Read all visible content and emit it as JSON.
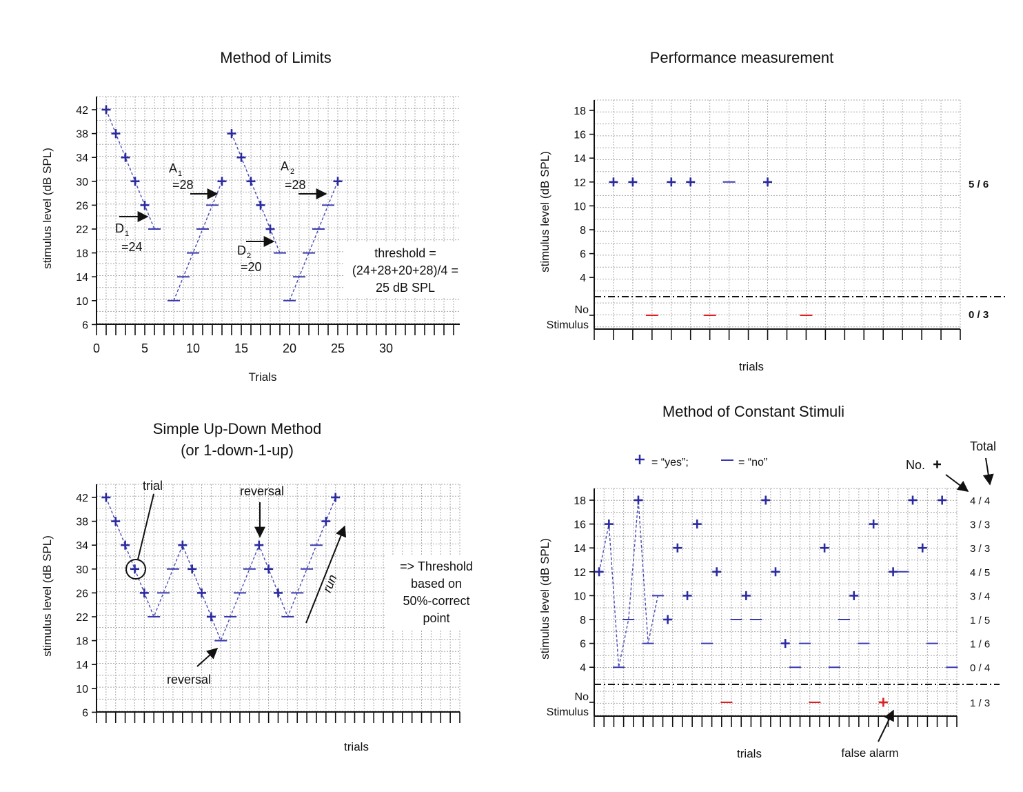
{
  "colors": {
    "yes": "#2b2ba0",
    "no": "#3a3ab0",
    "stimulus_absent": "#e02020",
    "path": "#4b4bb5",
    "text": "#111111"
  },
  "chart_data": [
    {
      "id": "limits",
      "type": "scatter",
      "title": "Method of Limits",
      "xlabel": "Trials",
      "ylabel": "stimulus level (dB SPL)",
      "xlim": [
        0,
        37
      ],
      "ylim": [
        6,
        42
      ],
      "xticks": [
        "0",
        "5",
        "10",
        "15",
        "20",
        "25",
        "30"
      ],
      "yticks": [
        "42",
        "38",
        "34",
        "30",
        "26",
        "22",
        "18",
        "14",
        "10",
        "6"
      ],
      "runs": [
        {
          "x": [
            1,
            2,
            3,
            4,
            5,
            6
          ],
          "y": [
            42,
            38,
            34,
            30,
            26,
            22
          ],
          "resp": [
            "+",
            "+",
            "+",
            "+",
            "+",
            "-"
          ]
        },
        {
          "x": [
            8,
            9,
            10,
            11,
            12,
            13
          ],
          "y": [
            10,
            14,
            18,
            22,
            26,
            30
          ],
          "resp": [
            "-",
            "-",
            "-",
            "-",
            "-",
            "+"
          ]
        },
        {
          "x": [
            14,
            15,
            16,
            17,
            18,
            19
          ],
          "y": [
            38,
            34,
            30,
            26,
            22,
            18
          ],
          "resp": [
            "+",
            "+",
            "+",
            "+",
            "+",
            "-"
          ]
        },
        {
          "x": [
            20,
            21,
            22,
            23,
            24,
            25
          ],
          "y": [
            10,
            14,
            18,
            22,
            26,
            30
          ],
          "resp": [
            "-",
            "-",
            "-",
            "-",
            "-",
            "+"
          ]
        }
      ],
      "annotations": {
        "a1": "A",
        "a1_sub": "1",
        "a1_val": "=28",
        "a2": "A",
        "a2_sub": "2",
        "a2_val": "=28",
        "d1": "D",
        "d1_sub": "1",
        "d1_val": "=24",
        "d2": "D",
        "d2_sub": "2",
        "d2_val": "=20",
        "threshold": [
          "threshold =",
          "(24+28+20+28)/4 =",
          "25 dB SPL"
        ]
      }
    },
    {
      "id": "performance",
      "type": "scatter",
      "title": "Performance measurement",
      "xlabel": "trials",
      "ylabel": "stimulus level (dB SPL)",
      "ylim": [
        4,
        18
      ],
      "yticks": [
        "18",
        "16",
        "14",
        "12",
        "10",
        "8",
        "6",
        "4"
      ],
      "no_stimulus_label": [
        "No",
        "Stimulus"
      ],
      "trials": 19,
      "points": [
        {
          "x": 1,
          "y": 12,
          "resp": "+"
        },
        {
          "x": 2,
          "y": 12,
          "resp": "+"
        },
        {
          "x": 4,
          "y": 12,
          "resp": "+"
        },
        {
          "x": 5,
          "y": 12,
          "resp": "+"
        },
        {
          "x": 7,
          "y": 12,
          "resp": "-"
        },
        {
          "x": 9,
          "y": 12,
          "resp": "+"
        }
      ],
      "no_stimulus_points": [
        {
          "x": 3,
          "resp": "-"
        },
        {
          "x": 6,
          "resp": "-"
        },
        {
          "x": 11,
          "resp": "-"
        }
      ],
      "totals": {
        "stimulus": "5 / 6",
        "no_stimulus": "0 / 3"
      }
    },
    {
      "id": "updown",
      "type": "line",
      "title": "Simple Up-Down Method",
      "subtitle": "(or 1-down-1-up)",
      "xlabel": "trials",
      "ylabel": "stimulus level (dB SPL)",
      "ylim": [
        6,
        42
      ],
      "yticks": [
        "42",
        "38",
        "34",
        "30",
        "26",
        "22",
        "18",
        "14",
        "10",
        "6"
      ],
      "trials": 38,
      "x": [
        1,
        2,
        3,
        4,
        5,
        6,
        7,
        8,
        9,
        10,
        11,
        12,
        13,
        14,
        15,
        16,
        17,
        18,
        19,
        20,
        21,
        22,
        23,
        24,
        25
      ],
      "y": [
        42,
        38,
        34,
        30,
        26,
        22,
        26,
        30,
        34,
        30,
        26,
        22,
        18,
        22,
        26,
        30,
        34,
        30,
        26,
        22,
        26,
        30,
        34,
        38,
        42
      ],
      "resp": [
        "+",
        "+",
        "+",
        "+",
        "+",
        "-",
        "-",
        "-",
        "+",
        "+",
        "+",
        "+",
        "-",
        "-",
        "-",
        "-",
        "+",
        "+",
        "+",
        "-",
        "-",
        "-",
        "-",
        "+",
        "+"
      ],
      "annotations": {
        "trial": "trial",
        "reversal_top": "reversal",
        "reversal_bottom": "reversal",
        "run": "run",
        "threshold": [
          "=> Threshold",
          "based on",
          "50%-correct",
          "point"
        ]
      }
    },
    {
      "id": "constant",
      "type": "scatter",
      "title": "Method of Constant Stimuli",
      "xlabel": "trials",
      "ylabel": "stimulus level (dB SPL)",
      "ylim": [
        4,
        18
      ],
      "yticks": [
        "18",
        "16",
        "14",
        "12",
        "10",
        "8",
        "6",
        "4"
      ],
      "no_stimulus_label": [
        "No",
        "Stimulus"
      ],
      "trials": 37,
      "legend": {
        "yes": "= “yes”;",
        "no": "= “no”"
      },
      "total_header": "Total",
      "no_plus_label": "No.",
      "false_alarm": "false alarm",
      "points": [
        {
          "x": 1,
          "y": 12,
          "resp": "+"
        },
        {
          "x": 2,
          "y": 16,
          "resp": "+"
        },
        {
          "x": 3,
          "y": 4,
          "resp": "-"
        },
        {
          "x": 4,
          "y": 8,
          "resp": "-"
        },
        {
          "x": 5,
          "y": 18,
          "resp": "+"
        },
        {
          "x": 6,
          "y": 6,
          "resp": "-"
        },
        {
          "x": 7,
          "y": 10,
          "resp": "-"
        },
        {
          "x": 8,
          "y": 8,
          "resp": "+"
        },
        {
          "x": 9,
          "y": 14,
          "resp": "+"
        },
        {
          "x": 10,
          "y": 10,
          "resp": "+"
        },
        {
          "x": 11,
          "y": 16,
          "resp": "+"
        },
        {
          "x": 12,
          "y": 6,
          "resp": "-"
        },
        {
          "x": 13,
          "y": 12,
          "resp": "+"
        },
        {
          "x": 15,
          "y": 8,
          "resp": "-"
        },
        {
          "x": 16,
          "y": 10,
          "resp": "+"
        },
        {
          "x": 17,
          "y": 8,
          "resp": "-"
        },
        {
          "x": 18,
          "y": 18,
          "resp": "+"
        },
        {
          "x": 19,
          "y": 12,
          "resp": "+"
        },
        {
          "x": 20,
          "y": 6,
          "resp": "+"
        },
        {
          "x": 21,
          "y": 4,
          "resp": "-"
        },
        {
          "x": 22,
          "y": 6,
          "resp": "-"
        },
        {
          "x": 24,
          "y": 14,
          "resp": "+"
        },
        {
          "x": 25,
          "y": 4,
          "resp": "-"
        },
        {
          "x": 26,
          "y": 8,
          "resp": "-"
        },
        {
          "x": 27,
          "y": 10,
          "resp": "+"
        },
        {
          "x": 28,
          "y": 6,
          "resp": "-"
        },
        {
          "x": 29,
          "y": 16,
          "resp": "+"
        },
        {
          "x": 31,
          "y": 12,
          "resp": "+"
        },
        {
          "x": 32,
          "y": 12,
          "resp": "-"
        },
        {
          "x": 33,
          "y": 18,
          "resp": "+"
        },
        {
          "x": 34,
          "y": 14,
          "resp": "+"
        },
        {
          "x": 35,
          "y": 6,
          "resp": "-"
        },
        {
          "x": 36,
          "y": 18,
          "resp": "+"
        },
        {
          "x": 37,
          "y": 4,
          "resp": "-"
        }
      ],
      "no_stimulus_points": [
        {
          "x": 14,
          "resp": "-"
        },
        {
          "x": 23,
          "resp": "-"
        },
        {
          "x": 30,
          "resp": "+"
        }
      ],
      "path_trials": 7,
      "totals": [
        "4 / 4",
        "3 / 3",
        "3 / 3",
        "4 / 5",
        "3 / 4",
        "1 / 5",
        "1 / 6",
        "0 / 4"
      ],
      "no_stimulus_total": "1 / 3"
    }
  ]
}
